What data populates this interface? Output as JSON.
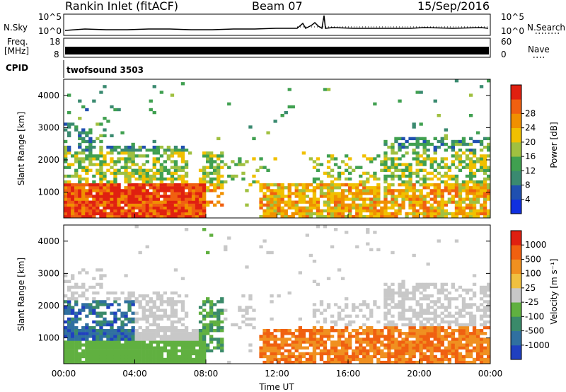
{
  "header": {
    "title": "Rankin Inlet (fitACF)",
    "beam": "Beam 07",
    "date": "15/Sep/2016"
  },
  "top_panels": {
    "nsky_label": "N.Sky",
    "nsearch_label": "N.Search",
    "nsky_ticks": [
      "10^5",
      "10^0"
    ],
    "nsearch_ticks": [
      "10^5",
      "10^0"
    ],
    "freq_label_1": "Freq.",
    "freq_label_2": "[MHz]",
    "freq_ticks": [
      "18",
      "8"
    ],
    "nave_label": "Nave",
    "nave_ticks": [
      "60",
      "0"
    ],
    "cpid_label": "CPID",
    "cpid_value": "twofsound 3503"
  },
  "chart_data": [
    {
      "type": "heatmap",
      "name": "power",
      "ylabel": "Slant Range [km]",
      "yticks": [
        "1000",
        "2000",
        "3000",
        "4000"
      ],
      "ylim": [
        200,
        4500
      ],
      "xlim": [
        "00:00",
        "24:00"
      ],
      "colorbar": {
        "label": "Power [dB]",
        "ticks": [
          "4",
          "8",
          "12",
          "16",
          "20",
          "24",
          "28"
        ],
        "colors": [
          "#1030e0",
          "#2050b0",
          "#3a8a70",
          "#40a050",
          "#a0c040",
          "#f0c000",
          "#f09000",
          "#f06010",
          "#e02010"
        ]
      }
    },
    {
      "type": "heatmap",
      "name": "velocity",
      "ylabel": "Slant Range [km]",
      "yticks": [
        "1000",
        "2000",
        "3000",
        "4000"
      ],
      "ylim": [
        200,
        4500
      ],
      "xlim": [
        "00:00",
        "24:00"
      ],
      "xticks": [
        "00:00",
        "04:00",
        "08:00",
        "12:00",
        "16:00",
        "20:00",
        "00:00"
      ],
      "xlabel": "Time UT",
      "colorbar": {
        "label": "Velocity [m s⁻¹]",
        "ticks": [
          "1000",
          "500",
          "100",
          "25",
          "-25",
          "-100",
          "-500",
          "-1000"
        ],
        "colors": [
          "#2040c0",
          "#3070a0",
          "#3a8a6a",
          "#60b040",
          "#c8c8c8",
          "#f0c040",
          "#f09020",
          "#f06010",
          "#e02010"
        ]
      }
    }
  ]
}
